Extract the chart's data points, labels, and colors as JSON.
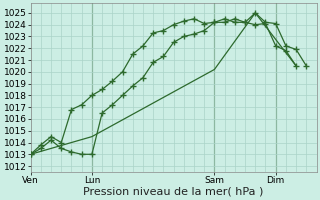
{
  "bg_color": "#cceee4",
  "grid_color": "#aad4c8",
  "line_color": "#2d6a2d",
  "sep_color": "#4a7a4a",
  "marker": "+",
  "marker_size": 4,
  "marker_lw": 1.0,
  "line_width": 0.9,
  "ylim": [
    1011.5,
    1025.8
  ],
  "yticks": [
    1012,
    1013,
    1014,
    1015,
    1016,
    1017,
    1018,
    1019,
    1020,
    1021,
    1022,
    1023,
    1024,
    1025
  ],
  "xlabel": "Pression niveau de la mer( hPa )",
  "xlabel_fontsize": 8,
  "tick_fontsize": 6.5,
  "day_labels": [
    "Ven",
    "Lun",
    "Sam",
    "Dim"
  ],
  "day_positions": [
    0,
    72,
    216,
    288
  ],
  "total_hours": 336,
  "line1_x": [
    0,
    12,
    24,
    36,
    48,
    60,
    72,
    84,
    96,
    108,
    120,
    132,
    144,
    156,
    168,
    180,
    192,
    204,
    216,
    228,
    240,
    252,
    264,
    276,
    288,
    300,
    312,
    324
  ],
  "line1_y": [
    1013.0,
    1013.5,
    1014.2,
    1013.5,
    1013.2,
    1013.0,
    1013.0,
    1016.5,
    1017.2,
    1018.0,
    1018.8,
    1019.5,
    1020.8,
    1021.3,
    1022.5,
    1023.0,
    1023.2,
    1023.5,
    1024.2,
    1024.5,
    1024.2,
    1024.2,
    1025.0,
    1024.2,
    1024.1,
    1022.2,
    1021.9,
    1020.5
  ],
  "line2_x": [
    0,
    12,
    24,
    36,
    48,
    60,
    72,
    84,
    96,
    108,
    120,
    132,
    144,
    156,
    168,
    180,
    192,
    204,
    216,
    228,
    240,
    252,
    264,
    276,
    288,
    300,
    312
  ],
  "line2_y": [
    1013.0,
    1013.8,
    1014.5,
    1014.0,
    1016.8,
    1017.2,
    1018.0,
    1018.5,
    1019.2,
    1020.0,
    1021.5,
    1022.2,
    1023.3,
    1023.5,
    1024.0,
    1024.3,
    1024.5,
    1024.1,
    1024.2,
    1024.2,
    1024.5,
    1024.2,
    1024.0,
    1024.1,
    1022.2,
    1021.8,
    1020.5
  ],
  "line3_x": [
    0,
    72,
    216,
    264,
    312
  ],
  "line3_y": [
    1013.0,
    1014.5,
    1020.2,
    1025.0,
    1020.5
  ]
}
